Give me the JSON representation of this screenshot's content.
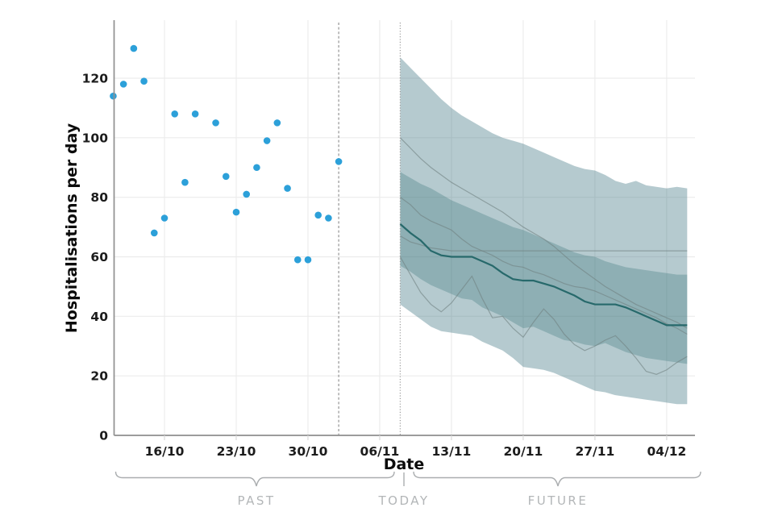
{
  "chart_data": {
    "type": "scatter",
    "title": "",
    "xlabel": "Date",
    "ylabel": "Hospitalisations per day",
    "ylim": [
      0,
      139
    ],
    "grid": true,
    "y_ticks": [
      0,
      20,
      40,
      60,
      80,
      100,
      120
    ],
    "x_ticks": [
      {
        "label": "16/10",
        "day": 0
      },
      {
        "label": "23/10",
        "day": 7
      },
      {
        "label": "30/10",
        "day": 14
      },
      {
        "label": "06/11",
        "day": 21
      },
      {
        "label": "13/11",
        "day": 28
      },
      {
        "label": "20/11",
        "day": 35
      },
      {
        "label": "27/11",
        "day": 42
      },
      {
        "label": "04/12",
        "day": 49
      }
    ],
    "observed": {
      "name": "observed-hospitalisations",
      "points": [
        {
          "date": "11/10",
          "day": -5,
          "value": 114
        },
        {
          "date": "12/10",
          "day": -4,
          "value": 118
        },
        {
          "date": "13/10",
          "day": -3,
          "value": 130
        },
        {
          "date": "14/10",
          "day": -2,
          "value": 119
        },
        {
          "date": "15/10",
          "day": -1,
          "value": 68
        },
        {
          "date": "16/10",
          "day": 0,
          "value": 73
        },
        {
          "date": "17/10",
          "day": 1,
          "value": 108
        },
        {
          "date": "18/10",
          "day": 2,
          "value": 85
        },
        {
          "date": "19/10",
          "day": 3,
          "value": 108
        },
        {
          "date": "21/10",
          "day": 5,
          "value": 105
        },
        {
          "date": "22/10",
          "day": 6,
          "value": 87
        },
        {
          "date": "23/10",
          "day": 7,
          "value": 75
        },
        {
          "date": "24/10",
          "day": 8,
          "value": 81
        },
        {
          "date": "25/10",
          "day": 9,
          "value": 90
        },
        {
          "date": "26/10",
          "day": 10,
          "value": 99
        },
        {
          "date": "27/10",
          "day": 11,
          "value": 105
        },
        {
          "date": "28/10",
          "day": 12,
          "value": 83
        },
        {
          "date": "29/10",
          "day": 13,
          "value": 59
        },
        {
          "date": "30/10",
          "day": 14,
          "value": 59
        },
        {
          "date": "31/10",
          "day": 15,
          "value": 74
        },
        {
          "date": "01/11",
          "day": 16,
          "value": 73
        },
        {
          "date": "02/11",
          "day": 17,
          "value": 92
        }
      ]
    },
    "dividers": {
      "dashed_day": 17,
      "dotted_day": 23
    },
    "forecast": {
      "start_day": 23,
      "dates": [
        "08/11",
        "09/11",
        "10/11",
        "11/11",
        "12/11",
        "13/11",
        "14/11",
        "15/11",
        "16/11",
        "17/11",
        "18/11",
        "19/11",
        "20/11",
        "21/11",
        "22/11",
        "23/11",
        "24/11",
        "25/11",
        "26/11",
        "27/11",
        "28/11",
        "29/11",
        "30/11",
        "01/12",
        "02/12",
        "03/12",
        "04/12",
        "05/12",
        "06/12"
      ],
      "median": [
        71,
        68,
        65.5,
        62,
        60.5,
        60,
        60,
        60,
        58.5,
        57,
        54.5,
        52.5,
        52,
        52,
        51,
        50,
        48.5,
        47,
        45,
        44,
        44,
        44,
        43,
        41.5,
        40,
        38.5,
        37,
        37,
        37
      ],
      "outer_top": [
        127,
        123.5,
        120,
        116.5,
        113,
        110,
        107.5,
        105.5,
        103.5,
        101.5,
        100,
        99,
        98,
        96.5,
        95,
        93.5,
        92,
        90.5,
        89.5,
        89,
        87.5,
        85.5,
        84.5,
        85.5,
        84,
        83.5,
        83,
        83.5,
        83
      ],
      "outer_bottom": [
        44,
        41.5,
        39,
        36.5,
        35,
        34.5,
        34,
        33.5,
        31.5,
        30,
        28.5,
        26,
        23,
        22.5,
        22,
        21,
        19.5,
        18,
        16.5,
        15,
        14.5,
        13.5,
        13,
        12.5,
        12,
        11.5,
        11,
        10.5,
        10.5
      ],
      "inner_top": [
        88.5,
        86.5,
        84.5,
        83,
        81,
        79,
        77.5,
        76,
        74.5,
        73,
        71.5,
        70,
        69,
        67.5,
        66,
        64.5,
        63,
        61.5,
        60.5,
        60,
        58.5,
        57.5,
        56.5,
        56,
        55.5,
        55,
        54.5,
        54,
        54
      ],
      "inner_bottom": [
        57,
        55,
        52.5,
        50.5,
        49,
        47.5,
        46,
        45.5,
        43,
        41.5,
        40,
        38,
        36,
        36.5,
        35,
        33.5,
        32,
        31.5,
        30.5,
        30,
        31,
        29.5,
        28,
        27,
        26,
        25.5,
        25,
        24.5,
        24
      ],
      "trajectories": [
        [
          100,
          96.5,
          93,
          90,
          87.5,
          85,
          83,
          81,
          79,
          77,
          75,
          72.5,
          70,
          68,
          66,
          63.5,
          60.5,
          57.5,
          55,
          52.5,
          50,
          48,
          46,
          44,
          42.5,
          41,
          39.5,
          38,
          36
        ],
        [
          80,
          77.5,
          74,
          72,
          70.5,
          69,
          66,
          63.5,
          62,
          60.5,
          58.5,
          57,
          56.5,
          55,
          54,
          52.5,
          51,
          50,
          49.5,
          48.5,
          47,
          45.5,
          44,
          42.5,
          41,
          39.5,
          37.5,
          36,
          34
        ],
        [
          67,
          65,
          64,
          63,
          62.5,
          62,
          62,
          62,
          62,
          62,
          62,
          62,
          62,
          62,
          62,
          62,
          62,
          62,
          62,
          62,
          62,
          62,
          62,
          62,
          62,
          62,
          62,
          62,
          62
        ],
        [
          60,
          54,
          48,
          44,
          41.5,
          44.5,
          49,
          53.5,
          46,
          39.5,
          40,
          36,
          33,
          38,
          42.5,
          39,
          34,
          30.5,
          28.5,
          30,
          32,
          33.5,
          30,
          26,
          21.5,
          20.5,
          22,
          24.5,
          26.5
        ]
      ]
    },
    "annotations": {
      "past": "PAST",
      "today": "TODAY",
      "future": "FUTURE"
    }
  },
  "colors": {
    "scatter_dot": "#2ca0d9",
    "band_outer": "#35707e",
    "band_outer_opacity": 0.37,
    "band_inner": "#2f6d70",
    "band_inner_opacity": 0.29,
    "median_line": "#27696b",
    "trajectory_line": "#6f8080",
    "trajectory_opacity": 0.6,
    "gridline": "#ececec",
    "axis_line": "#8f8f8f",
    "divider_line": "#9b9b9b",
    "brace": "#aaadaf",
    "annotation_text": "#b3b6b8",
    "tick_text": "#1c1c1c"
  }
}
